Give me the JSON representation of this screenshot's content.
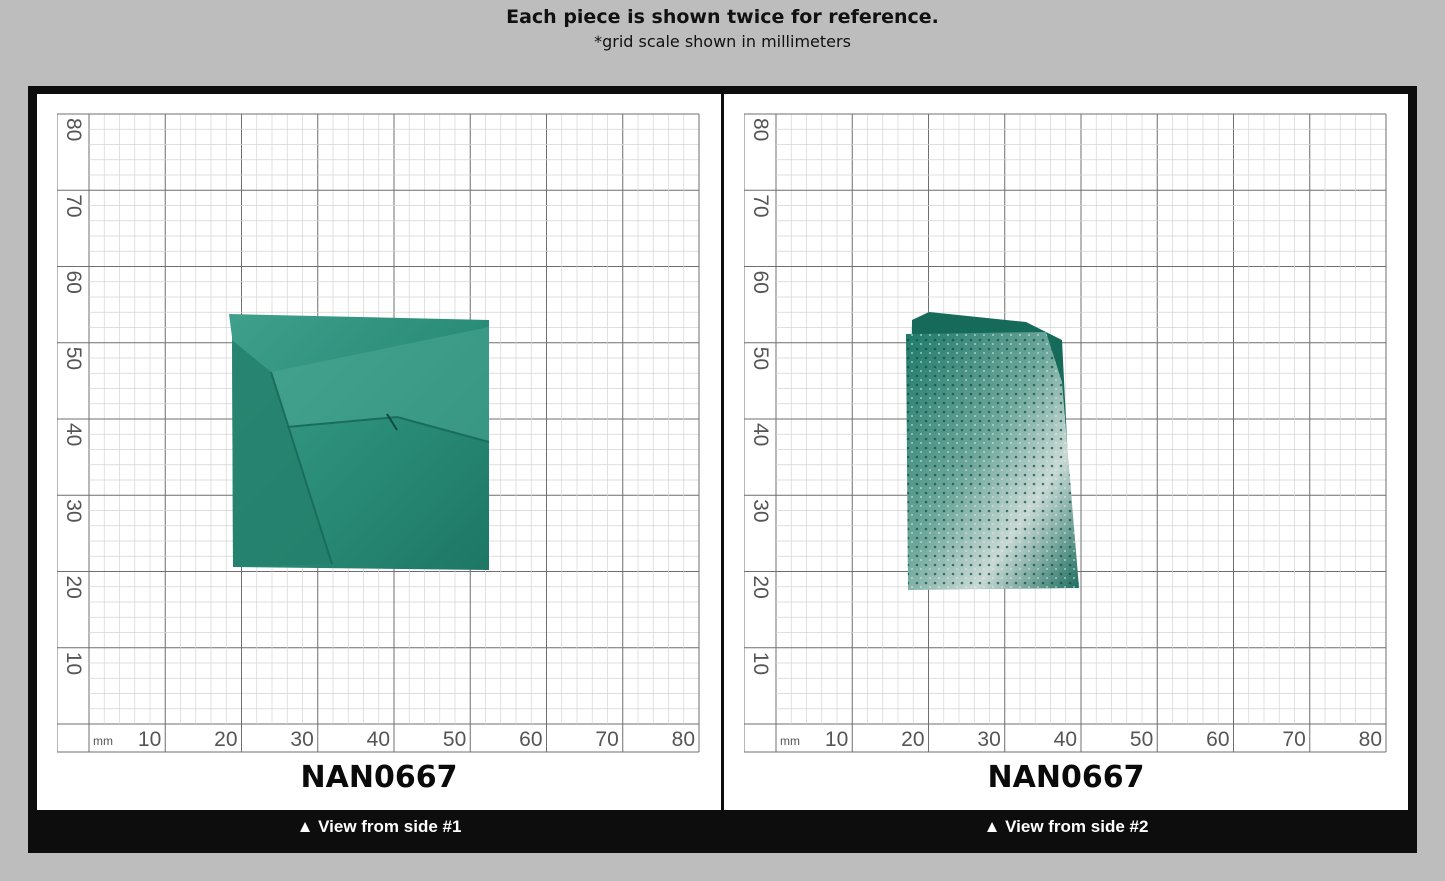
{
  "header": {
    "title": "Each piece is shown twice for reference.",
    "subtitle": "*grid scale shown in millimeters"
  },
  "grid": {
    "unit_label": "mm",
    "x_ticks": [
      "10",
      "20",
      "30",
      "40",
      "50",
      "60",
      "70",
      "80"
    ],
    "y_ticks": [
      "10",
      "20",
      "30",
      "40",
      "50",
      "60",
      "70",
      "80"
    ]
  },
  "views": [
    {
      "specimen_id": "NAN0667",
      "caption": "▲ View from side #1",
      "specimen_color": "#2a8f7c",
      "specimen_icon": "teal-crystal-slab-photo"
    },
    {
      "specimen_id": "NAN0667",
      "caption": "▲ View from side #2",
      "specimen_color": "#1f7a6a",
      "specimen_icon": "teal-crystal-edge-photo"
    }
  ]
}
